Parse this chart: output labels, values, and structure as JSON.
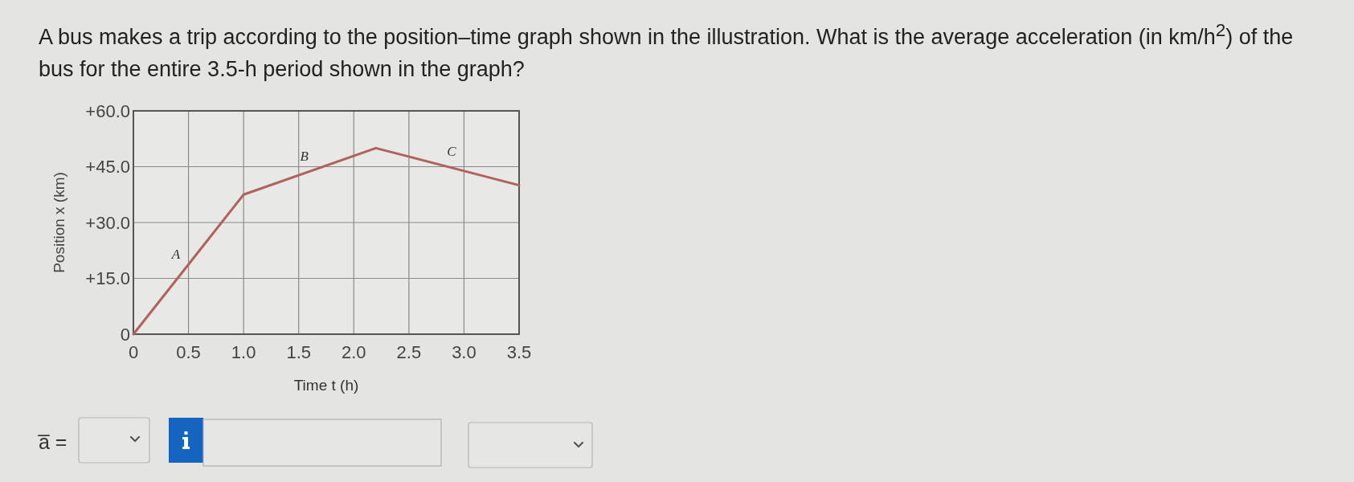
{
  "chart_data": {
    "type": "line",
    "title": "A bus makes a trip according to the position–time graph shown in the illustration. What is the average acceleration (in km/h$^{2}$) of the bus for the entire 3.5-h period shown in the graph?",
    "xlabel": "Time t (h)",
    "ylabel": "Position x (km)",
    "x": [
      0,
      1,
      2.2,
      3.5
    ],
    "values": [
      0,
      37.5,
      50,
      40
    ],
    "color": "#b0625c",
    "xlim": [
      0,
      3.5
    ],
    "ylim": [
      0,
      60
    ],
    "xticks": [
      0,
      0.5,
      {
        "value": 1,
        "label": "1.0"
      },
      1.5,
      {
        "value": 2,
        "label": "2.0"
      },
      2.5,
      {
        "value": 3,
        "label": "3.0"
      },
      3.5
    ],
    "yticks": [
      0,
      {
        "value": 15,
        "label": "+15.0"
      },
      {
        "value": 30,
        "label": "+30.0"
      },
      {
        "value": 45,
        "label": "+45.0"
      },
      {
        "value": 60,
        "label": "+60.0"
      }
    ],
    "grid": true,
    "annotations": [
      "A",
      "B",
      "C",
      "a̅ ="
    ]
  }
}
